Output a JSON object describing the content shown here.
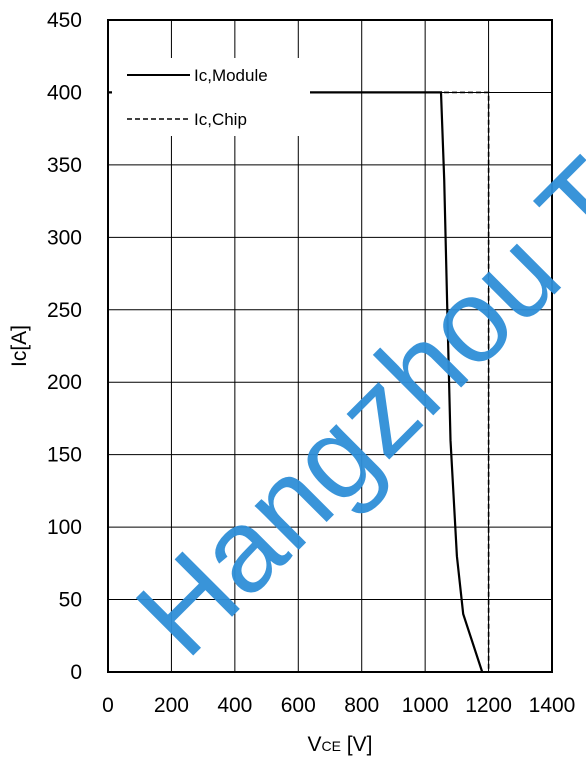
{
  "chart_data": {
    "type": "line",
    "xlabel_main": "V",
    "xlabel_sub": "CE",
    "xlabel_unit": " [V]",
    "ylabel": "Ic[A]",
    "xlim": [
      0,
      1400
    ],
    "ylim": [
      0,
      450
    ],
    "x_ticks": [
      0,
      200,
      400,
      600,
      800,
      1000,
      1200,
      1400
    ],
    "y_ticks": [
      0,
      50,
      100,
      150,
      200,
      250,
      300,
      350,
      400,
      450
    ],
    "grid": true,
    "legend_position": "top-left",
    "series": [
      {
        "name": "Ic,Module",
        "style": "solid",
        "color": "#000000",
        "points": [
          [
            0,
            400
          ],
          [
            1050,
            400
          ],
          [
            1060,
            340
          ],
          [
            1070,
            250
          ],
          [
            1080,
            160
          ],
          [
            1100,
            80
          ],
          [
            1120,
            40
          ],
          [
            1180,
            0
          ]
        ]
      },
      {
        "name": "Ic,Chip",
        "style": "dashed",
        "color": "#000000",
        "points": [
          [
            0,
            400
          ],
          [
            1200,
            400
          ],
          [
            1200,
            0
          ]
        ]
      }
    ]
  },
  "watermark": {
    "text": "Hangzhou Taixin",
    "color": "#2f8fd8"
  }
}
